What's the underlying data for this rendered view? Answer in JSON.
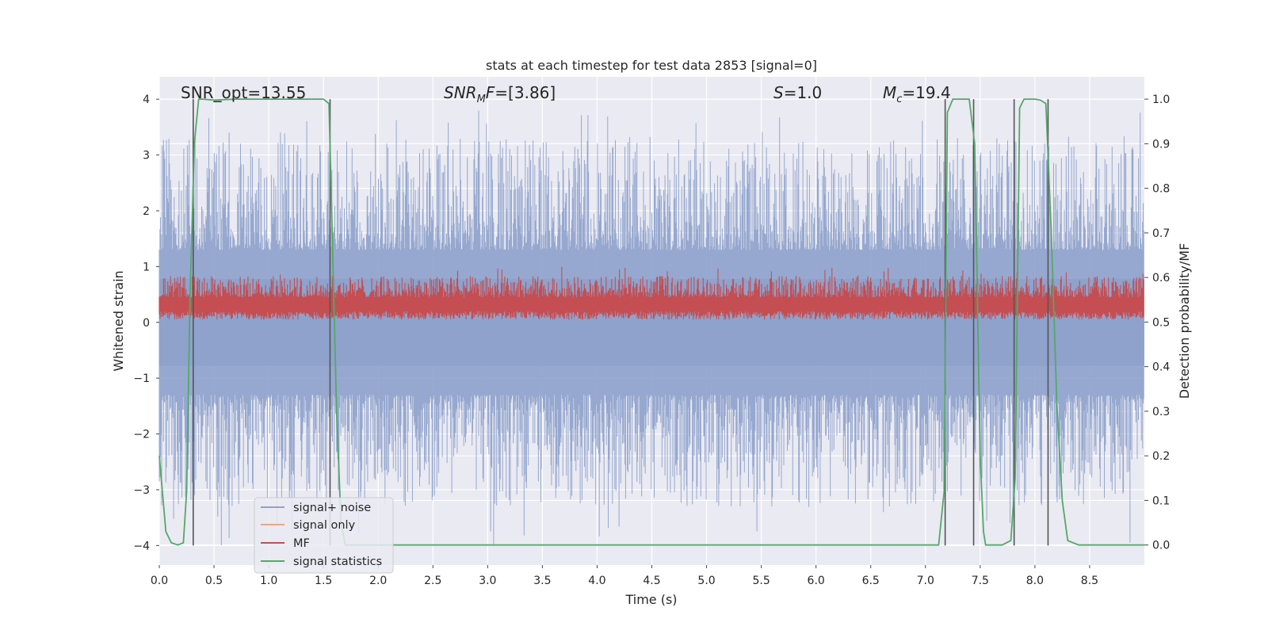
{
  "chart_data": {
    "type": "line",
    "title": "stats at each timestep for test data 2853 [signal=0]",
    "xlabel": "Time (s)",
    "ylabel": "Whitened strain",
    "ylabel_right": "Detection probability/MF",
    "xlim": [
      0.0,
      9.0
    ],
    "ylim": [
      -4.35,
      4.4
    ],
    "ylim_right": [
      -0.045,
      1.05
    ],
    "x_ticks": [
      "0.0",
      "0.5",
      "1.0",
      "1.5",
      "2.0",
      "2.5",
      "3.0",
      "3.5",
      "4.0",
      "4.5",
      "5.0",
      "5.5",
      "6.0",
      "6.5",
      "7.0",
      "7.5",
      "8.0",
      "8.5"
    ],
    "y_ticks": [
      "−4",
      "−3",
      "−2",
      "−1",
      "0",
      "1",
      "2",
      "3",
      "4"
    ],
    "y_ticks_right": [
      "0.0",
      "0.1",
      "0.2",
      "0.3",
      "0.4",
      "0.5",
      "0.6",
      "0.7",
      "0.8",
      "0.9",
      "1.0"
    ],
    "grid": true,
    "legend_position": "lower-left",
    "annotations": {
      "snr_opt": "SNR_opt=13.55",
      "snr_mf": "=[3.86]",
      "snr_mf_main": "SNR",
      "snr_mf_sub": "M",
      "snr_mf_tail": "F",
      "s_main": "S",
      "s_value": "=1.0",
      "mc_main": "M",
      "mc_sub": "c",
      "mc_value": "=19.4"
    },
    "series": [
      {
        "name": "signal+ noise",
        "color": "#8da1cb",
        "description_range": [
          -4.0,
          4.0
        ]
      },
      {
        "name": "signal only",
        "color": "#e8a88a"
      },
      {
        "name": "MF",
        "color": "#c44e52"
      },
      {
        "name": "signal statistics",
        "color": "#55a868",
        "x": [
          0.0,
          0.06,
          0.11,
          0.17,
          0.22,
          0.25,
          0.28,
          0.32,
          0.36,
          0.4,
          0.5,
          0.7,
          1.0,
          1.3,
          1.5,
          1.55,
          1.58,
          1.62,
          1.66,
          1.7,
          2.0,
          4.0,
          6.0,
          7.0,
          7.12,
          7.17,
          7.2,
          7.25,
          7.3,
          7.4,
          7.45,
          7.5,
          7.53,
          7.55,
          7.6,
          7.7,
          7.78,
          7.82,
          7.86,
          7.9,
          7.95,
          8.0,
          8.05,
          8.1,
          8.15,
          8.2,
          8.25,
          8.3,
          8.4,
          8.6,
          9.0
        ],
        "y": [
          0.2,
          0.03,
          0.005,
          0.0,
          0.005,
          0.12,
          0.55,
          0.9,
          1.0,
          1.0,
          0.998,
          1.0,
          1.0,
          1.0,
          1.0,
          0.99,
          0.7,
          0.3,
          0.05,
          0.0,
          0.0,
          0.0,
          0.0,
          0.0,
          0.0,
          0.12,
          0.97,
          1.0,
          1.0,
          1.0,
          0.9,
          0.2,
          0.03,
          0.0,
          0.0,
          0.0,
          0.01,
          0.15,
          0.98,
          1.0,
          1.0,
          1.0,
          0.998,
          0.99,
          0.7,
          0.32,
          0.1,
          0.01,
          0.0,
          0.0,
          0.0
        ]
      }
    ],
    "vertical_markers_x": [
      0.31,
      1.56,
      7.18,
      7.44,
      7.81,
      8.12
    ]
  },
  "legend": {
    "items": [
      {
        "label": "signal+ noise",
        "color": "#8da1cb"
      },
      {
        "label": "signal only",
        "color": "#e8a88a"
      },
      {
        "label": "MF",
        "color": "#c44e52"
      },
      {
        "label": "signal statistics",
        "color": "#55a868"
      }
    ]
  },
  "colors": {
    "plot_background": "#eaeaf2",
    "grid": "#ffffff",
    "marker_line": "#555555"
  }
}
